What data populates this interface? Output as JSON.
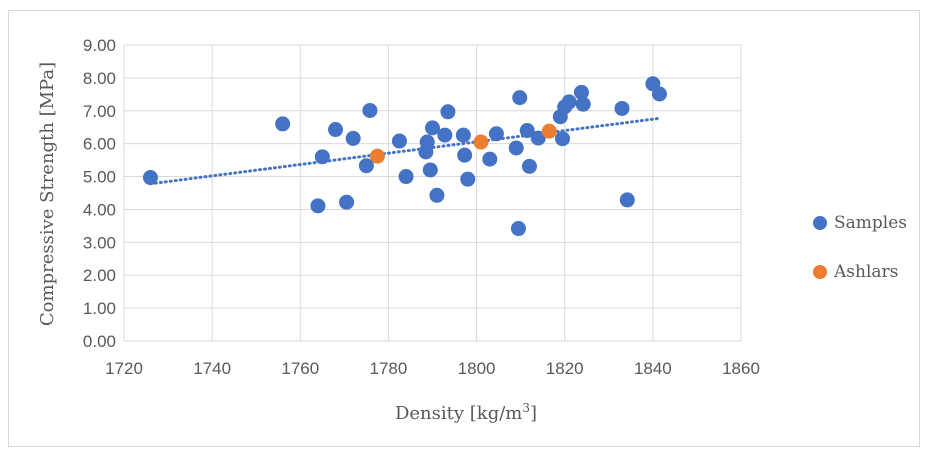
{
  "chart_data": {
    "type": "scatter",
    "xlabel": "Density [kg/m",
    "xlabel_sup": "3",
    "xlabel_end": "]",
    "ylabel": "Compressive Strength [MPa]",
    "xlim": [
      1720,
      1860
    ],
    "ylim": [
      0,
      9
    ],
    "x_ticks": [
      "1720",
      "1740",
      "1760",
      "1780",
      "1800",
      "1820",
      "1840",
      "1860"
    ],
    "y_ticks": [
      "0.00",
      "1.00",
      "2.00",
      "3.00",
      "4.00",
      "5.00",
      "6.00",
      "7.00",
      "8.00",
      "9.00"
    ],
    "grid": "vertical and horizontal",
    "legend_position": "right",
    "series": [
      {
        "name": "Samples",
        "color": "#4472c4",
        "points": [
          [
            1726.0,
            4.97
          ],
          [
            1756.0,
            6.6
          ],
          [
            1764.0,
            4.11
          ],
          [
            1765.0,
            5.6
          ],
          [
            1768.0,
            6.43
          ],
          [
            1770.5,
            4.22
          ],
          [
            1772.0,
            6.16
          ],
          [
            1775.0,
            5.33
          ],
          [
            1775.8,
            7.01
          ],
          [
            1782.5,
            6.08
          ],
          [
            1784.0,
            5.0
          ],
          [
            1788.5,
            5.75
          ],
          [
            1788.8,
            6.05
          ],
          [
            1789.5,
            5.2
          ],
          [
            1790.0,
            6.48
          ],
          [
            1791.0,
            4.43
          ],
          [
            1792.8,
            6.26
          ],
          [
            1793.5,
            6.97
          ],
          [
            1797.0,
            6.26
          ],
          [
            1797.3,
            5.65
          ],
          [
            1798.0,
            4.92
          ],
          [
            1803.0,
            5.53
          ],
          [
            1804.5,
            6.3
          ],
          [
            1809.0,
            5.87
          ],
          [
            1809.5,
            3.42
          ],
          [
            1809.8,
            7.4
          ],
          [
            1811.5,
            6.4
          ],
          [
            1812.0,
            5.31
          ],
          [
            1814.0,
            6.17
          ],
          [
            1819.0,
            6.82
          ],
          [
            1819.5,
            6.15
          ],
          [
            1820.0,
            7.12
          ],
          [
            1821.0,
            7.27
          ],
          [
            1823.8,
            7.56
          ],
          [
            1824.2,
            7.2
          ],
          [
            1833.0,
            7.07
          ],
          [
            1834.2,
            4.29
          ],
          [
            1840.0,
            7.82
          ],
          [
            1841.5,
            7.51
          ]
        ]
      },
      {
        "name": "Ashlars",
        "color": "#ed7d31",
        "points": [
          [
            1777.5,
            5.62
          ],
          [
            1801.0,
            6.05
          ],
          [
            1816.5,
            6.38
          ]
        ]
      }
    ],
    "trendline": {
      "series": "Samples",
      "style": "dotted",
      "color": "#4472c4",
      "x": [
        1726,
        1841.5
      ],
      "y": [
        4.78,
        6.77
      ]
    }
  }
}
